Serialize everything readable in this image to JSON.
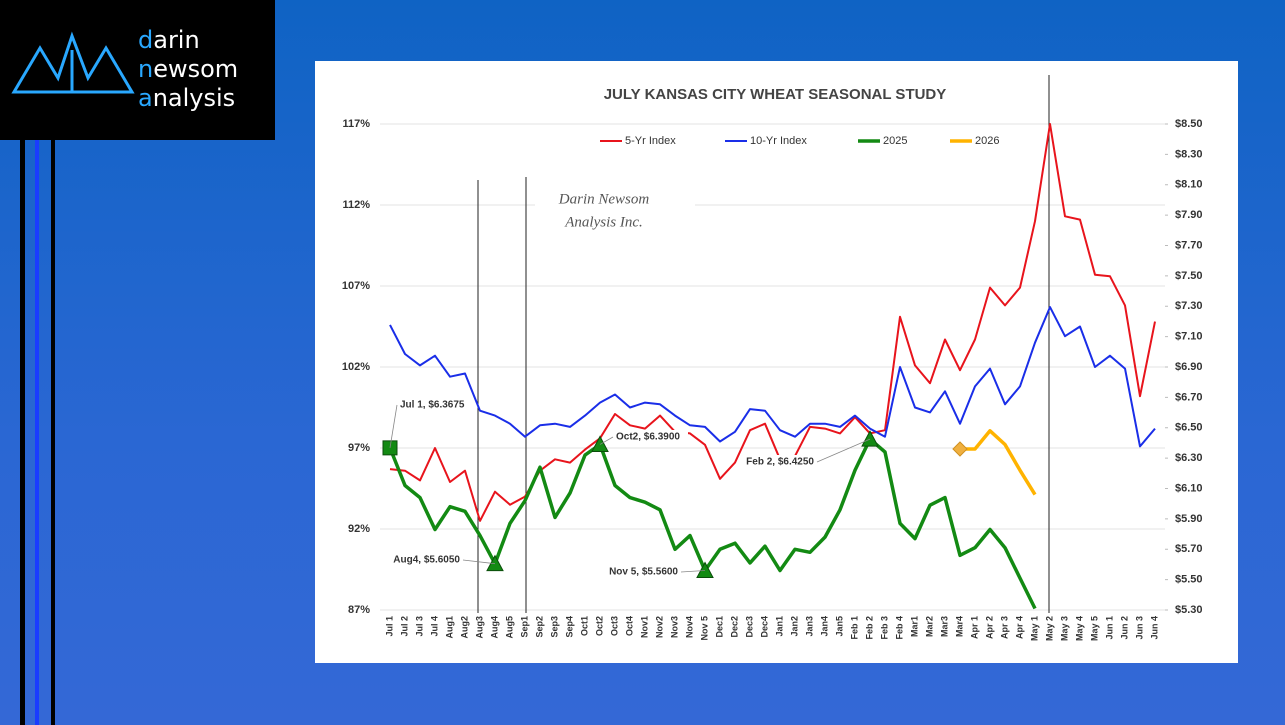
{
  "logo": {
    "lines": [
      "darin",
      "newsom",
      "analysis"
    ]
  },
  "chart_data": {
    "type": "line",
    "title": "JULY KANSAS CITY WHEAT SEASONAL STUDY",
    "watermark": [
      "Darin Newsom",
      "Analysis Inc."
    ],
    "categories": [
      "Jul 1",
      "Jul 2",
      "Jul 3",
      "Jul 4",
      "Aug1",
      "Aug2",
      "Aug3",
      "Aug4",
      "Aug5",
      "Sep1",
      "Sep2",
      "Sep3",
      "Sep4",
      "Oct1",
      "Oct2",
      "Oct3",
      "Oct4",
      "Nov1",
      "Nov2",
      "Nov3",
      "Nov4",
      "Nov 5",
      "Dec1",
      "Dec2",
      "Dec3",
      "Dec4",
      "Jan1",
      "Jan2",
      "Jan3",
      "Jan4",
      "Jan5",
      "Feb 1",
      "Feb 2",
      "Feb 3",
      "Feb 4",
      "Mar1",
      "Mar2",
      "Mar3",
      "Mar4",
      "Apr 1",
      "Apr 2",
      "Apr 3",
      "Apr 4",
      "May 1",
      "May 2",
      "May 3",
      "May 4",
      "May 5",
      "Jun 1",
      "Jun 2",
      "Jun 3",
      "Jun 4"
    ],
    "series": [
      {
        "name": "5-Yr Index",
        "color": "#e8141c",
        "axis": "y",
        "values": [
          95.7,
          95.6,
          95.0,
          97.0,
          94.9,
          95.6,
          92.5,
          94.3,
          93.5,
          94.0,
          95.6,
          96.3,
          96.1,
          96.9,
          97.6,
          99.1,
          98.4,
          98.2,
          99.0,
          98.0,
          97.9,
          97.2,
          95.1,
          96.1,
          98.1,
          98.5,
          96.3,
          96.5,
          98.3,
          98.2,
          97.9,
          98.9,
          97.9,
          98.1,
          105.1,
          102.1,
          101.0,
          103.7,
          101.8,
          103.7,
          106.9,
          105.8,
          106.9,
          111.0,
          117.0,
          111.3,
          111.1,
          107.7,
          107.6,
          105.8,
          100.2,
          104.8
        ]
      },
      {
        "name": "10-Yr Index",
        "color": "#1a2ee8",
        "axis": "y",
        "values": [
          104.6,
          102.8,
          102.1,
          102.7,
          101.4,
          101.6,
          99.3,
          99.0,
          98.5,
          97.7,
          98.4,
          98.5,
          98.3,
          99.0,
          99.8,
          100.3,
          99.5,
          99.8,
          99.7,
          99.0,
          98.4,
          98.3,
          97.4,
          98.0,
          99.4,
          99.3,
          98.1,
          97.7,
          98.5,
          98.5,
          98.3,
          99.0,
          98.2,
          97.7,
          102.0,
          99.5,
          99.2,
          100.5,
          98.5,
          100.8,
          101.9,
          99.7,
          100.8,
          103.5,
          105.7,
          103.9,
          104.5,
          102.0,
          102.7,
          101.9,
          97.1,
          98.2
        ]
      },
      {
        "name": "2025",
        "color": "#138a13",
        "axis": "y2",
        "values": [
          6.3675,
          6.12,
          6.04,
          5.83,
          5.98,
          5.95,
          5.79,
          5.605,
          5.87,
          6.02,
          6.24,
          5.91,
          6.07,
          6.32,
          6.39,
          6.12,
          6.04,
          6.01,
          5.96,
          5.7,
          5.79,
          5.56,
          5.7,
          5.74,
          5.61,
          5.72,
          5.56,
          5.7,
          5.68,
          5.78,
          5.96,
          6.22,
          6.425,
          6.34,
          5.87,
          5.77,
          5.99,
          6.04,
          5.66,
          5.71,
          5.83,
          5.71,
          5.51,
          5.31,
          null,
          null,
          null,
          null,
          null,
          null,
          null,
          null
        ]
      },
      {
        "name": "2026",
        "color": "#ffb300",
        "axis": "y2",
        "values": [
          null,
          null,
          null,
          null,
          null,
          null,
          null,
          null,
          null,
          null,
          null,
          null,
          null,
          null,
          null,
          null,
          null,
          null,
          null,
          null,
          null,
          null,
          null,
          null,
          null,
          null,
          null,
          null,
          null,
          null,
          null,
          null,
          null,
          null,
          null,
          null,
          null,
          null,
          6.36,
          6.36,
          6.48,
          6.39,
          6.22,
          6.06,
          null,
          null,
          null,
          null,
          null,
          null,
          null,
          null
        ]
      }
    ],
    "annotations": [
      "Jul 1, $6.3675",
      "Aug4, $5.6050",
      "Oct2, $6.3900",
      "Nov 5, $5.5600",
      "Feb 2, $6.4250"
    ],
    "ylim": [
      87,
      117
    ],
    "yticks": [
      {
        "value": 87,
        "label": "87%"
      },
      {
        "value": 92,
        "label": "92%"
      },
      {
        "value": 97,
        "label": "97%"
      },
      {
        "value": 102,
        "label": "102%"
      },
      {
        "value": 107,
        "label": "107%"
      },
      {
        "value": 112,
        "label": "112%"
      },
      {
        "value": 117,
        "label": "117%"
      }
    ],
    "y2lim": [
      5.3,
      8.5
    ],
    "y2ticks": [
      {
        "value": 5.3,
        "label": "$5.30"
      },
      {
        "value": 5.5,
        "label": "$5.50"
      },
      {
        "value": 5.7,
        "label": "$5.70"
      },
      {
        "value": 5.9,
        "label": "$5.90"
      },
      {
        "value": 6.1,
        "label": "$6.10"
      },
      {
        "value": 6.3,
        "label": "$6.30"
      },
      {
        "value": 6.5,
        "label": "$6.50"
      },
      {
        "value": 6.7,
        "label": "$6.70"
      },
      {
        "value": 6.9,
        "label": "$6.90"
      },
      {
        "value": 7.1,
        "label": "$7.10"
      },
      {
        "value": 7.3,
        "label": "$7.30"
      },
      {
        "value": 7.5,
        "label": "$7.50"
      },
      {
        "value": 7.7,
        "label": "$7.70"
      },
      {
        "value": 7.9,
        "label": "$7.90"
      },
      {
        "value": 8.1,
        "label": "$8.10"
      },
      {
        "value": 8.3,
        "label": "$8.30"
      },
      {
        "value": 8.5,
        "label": "$8.50"
      }
    ],
    "grid": true,
    "legend": "top"
  }
}
